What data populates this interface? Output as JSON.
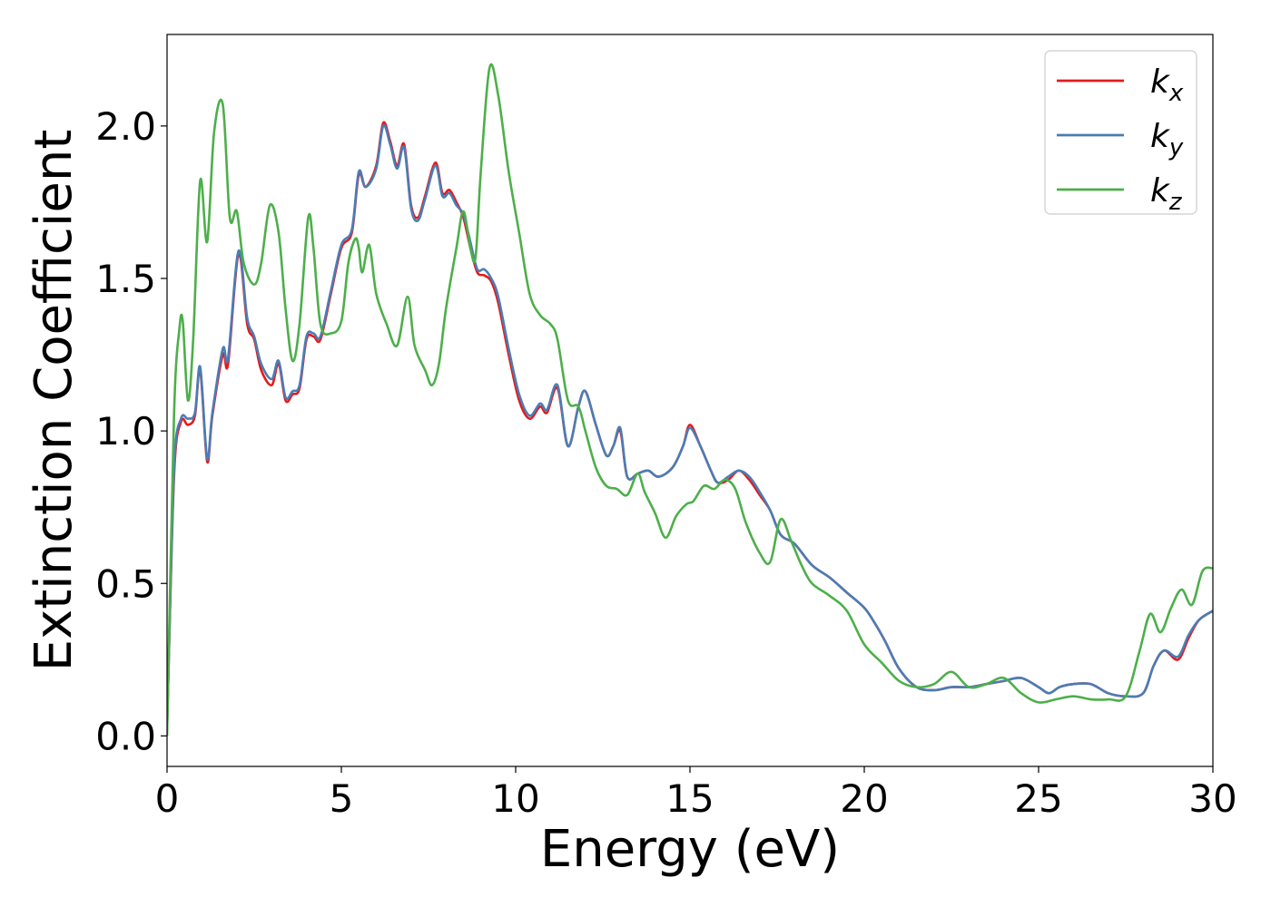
{
  "chart_data": {
    "type": "line",
    "xlabel": "Energy (eV)",
    "ylabel": "Extinction Coefficient",
    "xlim": [
      0,
      30
    ],
    "ylim": [
      -0.1,
      2.3
    ],
    "xticks": [
      0,
      5,
      10,
      15,
      20,
      25,
      30
    ],
    "xtick_labels": [
      "0",
      "5",
      "10",
      "15",
      "20",
      "25",
      "30"
    ],
    "yticks": [
      0.0,
      0.5,
      1.0,
      1.5,
      2.0
    ],
    "ytick_labels": [
      "0.0",
      "0.5",
      "1.0",
      "1.5",
      "2.0"
    ],
    "grid": false,
    "legend": {
      "position": "top-right",
      "entries": [
        {
          "base": "k",
          "sub": "x"
        },
        {
          "base": "k",
          "sub": "y"
        },
        {
          "base": "k",
          "sub": "z"
        }
      ]
    },
    "series": [
      {
        "name": "kx",
        "color": "#e41a1c",
        "x": [
          0,
          0.2,
          0.4,
          0.6,
          0.8,
          0.95,
          1.15,
          1.3,
          1.6,
          1.75,
          2.05,
          2.3,
          2.5,
          2.7,
          3.0,
          3.2,
          3.4,
          3.6,
          3.8,
          4.0,
          4.2,
          4.4,
          4.7,
          5.0,
          5.3,
          5.5,
          5.7,
          6.0,
          6.2,
          6.4,
          6.6,
          6.8,
          7.0,
          7.2,
          7.4,
          7.7,
          7.9,
          8.1,
          8.3,
          8.5,
          8.7,
          8.9,
          9.1,
          9.3,
          9.5,
          9.8,
          10.1,
          10.4,
          10.7,
          10.9,
          11.2,
          11.5,
          11.8,
          12.0,
          12.3,
          12.6,
          12.8,
          13.0,
          13.2,
          13.5,
          13.8,
          14.1,
          14.5,
          14.8,
          15.0,
          15.3,
          15.6,
          15.8,
          16.1,
          16.4,
          16.7,
          17.0,
          17.3,
          17.6,
          18.0,
          18.5,
          19.0,
          19.5,
          20.0,
          20.3,
          20.6,
          21.0,
          21.5,
          22.0,
          22.5,
          23.0,
          23.5,
          24.0,
          24.5,
          25.0,
          25.3,
          25.6,
          26.0,
          26.5,
          27.0,
          27.5,
          28.0,
          28.3,
          28.6,
          29.0,
          29.3,
          29.6,
          30.0
        ],
        "values": [
          0.02,
          0.85,
          1.03,
          1.02,
          1.05,
          1.2,
          0.9,
          1.05,
          1.25,
          1.22,
          1.58,
          1.35,
          1.3,
          1.2,
          1.15,
          1.22,
          1.1,
          1.12,
          1.14,
          1.3,
          1.31,
          1.3,
          1.45,
          1.6,
          1.65,
          1.84,
          1.8,
          1.87,
          2.01,
          1.95,
          1.87,
          1.94,
          1.74,
          1.7,
          1.77,
          1.88,
          1.78,
          1.79,
          1.75,
          1.7,
          1.6,
          1.52,
          1.51,
          1.49,
          1.42,
          1.25,
          1.1,
          1.04,
          1.08,
          1.06,
          1.14,
          0.95,
          1.08,
          1.13,
          1.02,
          0.92,
          0.95,
          1.0,
          0.85,
          0.86,
          0.87,
          0.85,
          0.88,
          0.95,
          1.02,
          0.95,
          0.87,
          0.83,
          0.84,
          0.87,
          0.84,
          0.79,
          0.74,
          0.66,
          0.63,
          0.56,
          0.52,
          0.47,
          0.42,
          0.37,
          0.31,
          0.22,
          0.16,
          0.15,
          0.16,
          0.16,
          0.17,
          0.18,
          0.19,
          0.16,
          0.14,
          0.16,
          0.17,
          0.17,
          0.14,
          0.13,
          0.14,
          0.23,
          0.28,
          0.25,
          0.32,
          0.38,
          0.41
        ]
      },
      {
        "name": "ky",
        "color": "#4a7db5",
        "x": [
          0,
          0.2,
          0.4,
          0.6,
          0.8,
          0.95,
          1.15,
          1.3,
          1.6,
          1.75,
          2.05,
          2.3,
          2.5,
          2.7,
          3.0,
          3.2,
          3.4,
          3.6,
          3.8,
          4.0,
          4.2,
          4.4,
          4.7,
          5.0,
          5.3,
          5.5,
          5.7,
          6.0,
          6.2,
          6.4,
          6.6,
          6.8,
          7.0,
          7.2,
          7.4,
          7.7,
          7.9,
          8.1,
          8.3,
          8.5,
          8.7,
          8.9,
          9.1,
          9.3,
          9.5,
          9.8,
          10.1,
          10.4,
          10.7,
          10.9,
          11.2,
          11.5,
          11.8,
          12.0,
          12.3,
          12.6,
          12.8,
          13.0,
          13.2,
          13.5,
          13.8,
          14.1,
          14.5,
          14.8,
          15.0,
          15.3,
          15.6,
          15.8,
          16.1,
          16.4,
          16.7,
          17.0,
          17.3,
          17.6,
          18.0,
          18.5,
          19.0,
          19.5,
          20.0,
          20.3,
          20.6,
          21.0,
          21.5,
          22.0,
          22.5,
          23.0,
          23.5,
          24.0,
          24.5,
          25.0,
          25.3,
          25.6,
          26.0,
          26.5,
          27.0,
          27.5,
          28.0,
          28.3,
          28.6,
          29.0,
          29.3,
          29.6,
          30.0
        ],
        "values": [
          0.02,
          0.87,
          1.04,
          1.04,
          1.06,
          1.21,
          0.91,
          1.06,
          1.27,
          1.24,
          1.59,
          1.37,
          1.31,
          1.22,
          1.17,
          1.23,
          1.11,
          1.13,
          1.15,
          1.31,
          1.32,
          1.31,
          1.46,
          1.61,
          1.66,
          1.85,
          1.8,
          1.86,
          2.0,
          1.94,
          1.86,
          1.93,
          1.73,
          1.69,
          1.76,
          1.87,
          1.77,
          1.78,
          1.74,
          1.71,
          1.62,
          1.53,
          1.53,
          1.5,
          1.44,
          1.27,
          1.12,
          1.05,
          1.09,
          1.07,
          1.15,
          0.95,
          1.08,
          1.13,
          1.02,
          0.92,
          0.95,
          1.01,
          0.85,
          0.86,
          0.87,
          0.85,
          0.88,
          0.95,
          1.01,
          0.95,
          0.87,
          0.83,
          0.85,
          0.87,
          0.85,
          0.8,
          0.74,
          0.66,
          0.63,
          0.56,
          0.52,
          0.47,
          0.42,
          0.37,
          0.31,
          0.22,
          0.16,
          0.15,
          0.16,
          0.16,
          0.17,
          0.18,
          0.19,
          0.16,
          0.14,
          0.16,
          0.17,
          0.17,
          0.14,
          0.13,
          0.14,
          0.23,
          0.28,
          0.26,
          0.33,
          0.38,
          0.41
        ]
      },
      {
        "name": "kz",
        "color": "#4daf4a",
        "x": [
          0,
          0.2,
          0.35,
          0.45,
          0.6,
          0.75,
          0.95,
          1.15,
          1.35,
          1.6,
          1.8,
          2.0,
          2.2,
          2.5,
          2.7,
          2.95,
          3.2,
          3.4,
          3.6,
          3.8,
          4.05,
          4.2,
          4.4,
          4.7,
          5.0,
          5.2,
          5.4,
          5.5,
          5.6,
          5.8,
          6.0,
          6.3,
          6.6,
          6.9,
          7.1,
          7.4,
          7.6,
          7.8,
          8.0,
          8.3,
          8.5,
          8.7,
          8.85,
          9.0,
          9.25,
          9.5,
          9.8,
          10.1,
          10.4,
          10.7,
          11.0,
          11.2,
          11.5,
          11.8,
          12.0,
          12.3,
          12.6,
          12.9,
          13.2,
          13.5,
          13.7,
          14.0,
          14.3,
          14.6,
          14.9,
          15.1,
          15.4,
          15.7,
          16.0,
          16.3,
          16.6,
          17.0,
          17.3,
          17.6,
          17.9,
          18.2,
          18.5,
          19.0,
          19.5,
          20.0,
          20.5,
          21.0,
          21.5,
          22.0,
          22.5,
          23.0,
          23.5,
          24.0,
          24.5,
          25.0,
          25.5,
          26.0,
          26.5,
          27.0,
          27.5,
          27.9,
          28.2,
          28.5,
          28.8,
          29.1,
          29.4,
          29.7,
          30.0
        ],
        "values": [
          0.0,
          1.05,
          1.33,
          1.36,
          1.1,
          1.3,
          1.82,
          1.62,
          1.98,
          2.07,
          1.7,
          1.72,
          1.55,
          1.48,
          1.55,
          1.74,
          1.65,
          1.4,
          1.23,
          1.35,
          1.7,
          1.6,
          1.35,
          1.32,
          1.36,
          1.55,
          1.63,
          1.6,
          1.52,
          1.61,
          1.45,
          1.35,
          1.28,
          1.44,
          1.28,
          1.2,
          1.15,
          1.22,
          1.4,
          1.6,
          1.72,
          1.6,
          1.57,
          1.85,
          2.19,
          2.1,
          1.85,
          1.65,
          1.45,
          1.38,
          1.35,
          1.3,
          1.1,
          1.08,
          1.0,
          0.88,
          0.82,
          0.81,
          0.79,
          0.86,
          0.8,
          0.73,
          0.65,
          0.72,
          0.76,
          0.77,
          0.82,
          0.81,
          0.84,
          0.81,
          0.7,
          0.6,
          0.57,
          0.71,
          0.64,
          0.56,
          0.5,
          0.46,
          0.41,
          0.3,
          0.24,
          0.18,
          0.16,
          0.17,
          0.21,
          0.16,
          0.17,
          0.19,
          0.14,
          0.11,
          0.12,
          0.13,
          0.12,
          0.12,
          0.13,
          0.28,
          0.4,
          0.34,
          0.42,
          0.48,
          0.43,
          0.54,
          0.55
        ]
      }
    ]
  }
}
